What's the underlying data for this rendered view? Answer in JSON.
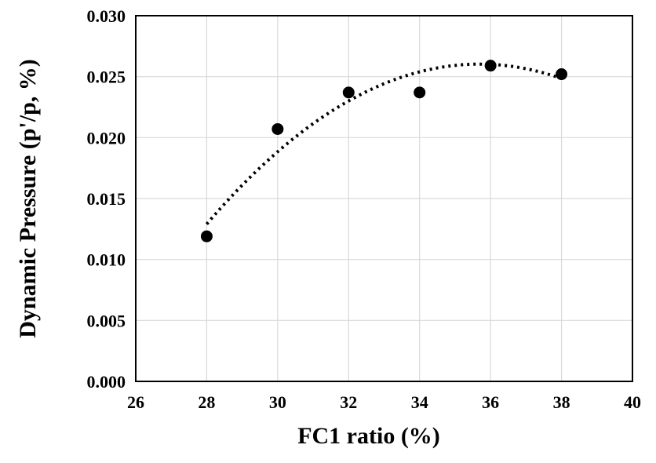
{
  "chart_data": {
    "type": "scatter",
    "title": "",
    "xlabel": "FC1 ratio (%)",
    "ylabel": "Dynamic Pressure (p'/p, %)",
    "xlim": [
      26,
      40
    ],
    "ylim": [
      0.0,
      0.03
    ],
    "x_ticks": [
      "26",
      "28",
      "30",
      "32",
      "34",
      "36",
      "38",
      "40"
    ],
    "y_ticks": [
      "0.000",
      "0.005",
      "0.010",
      "0.015",
      "0.020",
      "0.025",
      "0.030"
    ],
    "grid": true,
    "legend": "none",
    "series": [
      {
        "x": [
          28,
          30,
          32,
          34,
          36,
          38
        ],
        "y": [
          0.0119,
          0.0207,
          0.0237,
          0.0237,
          0.0259,
          0.0252
        ],
        "marker": "circle",
        "color": "#000000"
      }
    ],
    "trendline": {
      "type": "polynomial",
      "order": 2,
      "style": "dotted",
      "color": "#000000",
      "x_range": [
        28,
        38
      ],
      "y_at_x": {
        "28": 0.0129,
        "30": 0.0189,
        "32": 0.0229,
        "34": 0.0254,
        "36": 0.0261,
        "38": 0.0248
      }
    },
    "colors": {
      "grid": "#d9d9d9",
      "axis": "#000000"
    }
  }
}
